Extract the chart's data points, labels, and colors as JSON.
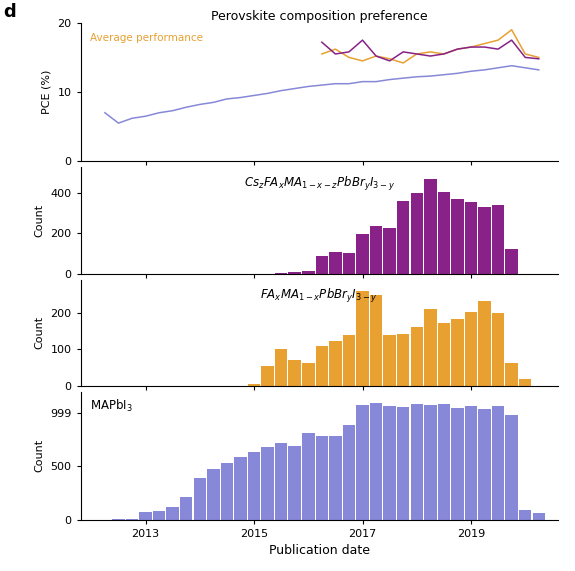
{
  "title": "Perovskite composition preference",
  "subtitle": "Average performance",
  "panel_label": "d",
  "xlabel": "Publication date",
  "colors": {
    "mapbi3": "#8888d8",
    "fama": "#e8a030",
    "csfama": "#882288"
  },
  "line_x": [
    2012.25,
    2012.5,
    2012.75,
    2013.0,
    2013.25,
    2013.5,
    2013.75,
    2014.0,
    2014.25,
    2014.5,
    2014.75,
    2015.0,
    2015.25,
    2015.5,
    2015.75,
    2016.0,
    2016.25,
    2016.5,
    2016.75,
    2017.0,
    2017.25,
    2017.5,
    2017.75,
    2018.0,
    2018.25,
    2018.5,
    2018.75,
    2019.0,
    2019.25,
    2019.5,
    2019.75,
    2020.0,
    2020.25
  ],
  "mapbi3_pce": [
    7.0,
    5.5,
    6.2,
    6.5,
    7.0,
    7.3,
    7.8,
    8.2,
    8.5,
    9.0,
    9.2,
    9.5,
    9.8,
    10.2,
    10.5,
    10.8,
    11.0,
    11.2,
    11.2,
    11.5,
    11.5,
    11.8,
    12.0,
    12.2,
    12.3,
    12.5,
    12.7,
    13.0,
    13.2,
    13.5,
    13.8,
    13.5,
    13.2
  ],
  "fama_pce": [
    null,
    null,
    null,
    null,
    null,
    null,
    null,
    null,
    null,
    null,
    null,
    null,
    null,
    null,
    null,
    null,
    15.5,
    16.2,
    15.0,
    14.5,
    15.2,
    14.8,
    14.2,
    15.5,
    15.8,
    15.5,
    16.2,
    16.5,
    17.0,
    17.5,
    19.0,
    15.5,
    15.0
  ],
  "csfama_pce": [
    null,
    null,
    null,
    null,
    null,
    null,
    null,
    null,
    null,
    null,
    null,
    null,
    null,
    null,
    null,
    null,
    17.2,
    15.5,
    15.8,
    17.5,
    15.2,
    14.5,
    15.8,
    15.5,
    15.2,
    15.5,
    16.2,
    16.5,
    16.5,
    16.2,
    17.5,
    15.0,
    14.8
  ],
  "bar_x": [
    2012.0,
    2012.25,
    2012.5,
    2012.75,
    2013.0,
    2013.25,
    2013.5,
    2013.75,
    2014.0,
    2014.25,
    2014.5,
    2014.75,
    2015.0,
    2015.25,
    2015.5,
    2015.75,
    2016.0,
    2016.25,
    2016.5,
    2016.75,
    2017.0,
    2017.25,
    2017.5,
    2017.75,
    2018.0,
    2018.25,
    2018.5,
    2018.75,
    2019.0,
    2019.25,
    2019.5,
    2019.75,
    2020.0,
    2020.25
  ],
  "mapbi3_counts": [
    0,
    0,
    5,
    10,
    70,
    80,
    120,
    210,
    390,
    480,
    530,
    590,
    640,
    680,
    720,
    690,
    810,
    790,
    790,
    890,
    1080,
    1100,
    1070,
    1060,
    1090,
    1080,
    1090,
    1050,
    1070,
    1040,
    1070,
    980,
    90,
    60
  ],
  "fama_counts": [
    0,
    0,
    0,
    0,
    0,
    0,
    0,
    0,
    0,
    0,
    0,
    0,
    5,
    55,
    100,
    72,
    62,
    110,
    122,
    138,
    260,
    248,
    138,
    142,
    162,
    210,
    172,
    182,
    202,
    232,
    198,
    62,
    18,
    0
  ],
  "csfama_counts": [
    0,
    0,
    0,
    0,
    0,
    0,
    0,
    0,
    0,
    0,
    0,
    0,
    0,
    0,
    5,
    10,
    12,
    85,
    108,
    102,
    195,
    238,
    228,
    362,
    402,
    472,
    408,
    372,
    358,
    332,
    342,
    122,
    0,
    0
  ],
  "bar_width": 0.23,
  "xlim": [
    2011.8,
    2020.6
  ],
  "xticks": [
    2013,
    2015,
    2017,
    2019
  ],
  "xticklabels": [
    "2013",
    "2015",
    "2017",
    "2019"
  ]
}
